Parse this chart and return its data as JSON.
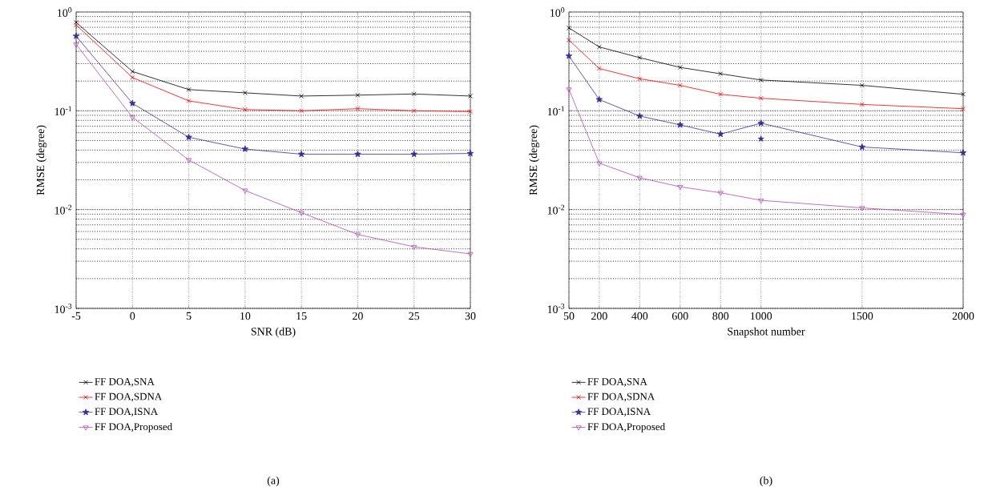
{
  "chart_data": [
    {
      "type": "line",
      "xlabel": "SNR (dB)",
      "ylabel": "RMSE (degree)",
      "log": "y",
      "grid": true,
      "legend": "bottom",
      "line_style": "solid",
      "x": [
        -5,
        0,
        5,
        10,
        15,
        20,
        25,
        30
      ],
      "xlim": [
        -5,
        30
      ],
      "xticks": [
        -5,
        0,
        5,
        10,
        15,
        20,
        25,
        30
      ],
      "ylim": [
        0.001,
        1
      ],
      "yticks": [
        {
          "value": 0.001,
          "label": "10$^{-3}$"
        },
        {
          "value": 0.01,
          "label": "10$^{-2}$"
        },
        {
          "value": 0.1,
          "label": "10$^{-1}$"
        },
        {
          "value": 1,
          "label": "10$^{0}$"
        }
      ],
      "series": [
        {
          "name": "FF DOA,SNA",
          "color": "#000000",
          "marker": "cross",
          "values": [
            0.785,
            0.25,
            0.164,
            0.152,
            0.141,
            0.144,
            0.148,
            0.141
          ]
        },
        {
          "name": "FF DOA,SDNA",
          "color": "#ff0000",
          "marker": "cross",
          "values": [
            0.74,
            0.217,
            0.126,
            0.103,
            0.1,
            0.105,
            0.1,
            0.098
          ]
        },
        {
          "name": "FF DOA,ISNA",
          "color": "#3a2e96",
          "marker": "star",
          "values": [
            0.57,
            0.119,
            0.054,
            0.041,
            0.0364,
            0.0364,
            0.0364,
            0.037
          ]
        },
        {
          "name": "FF DOA,Proposed",
          "color": "#b04cb0",
          "marker": "triangle",
          "values": [
            0.47,
            0.086,
            0.0318,
            0.0156,
            0.0093,
            0.0056,
            0.0042,
            0.00356
          ]
        }
      ],
      "annotations": [
        "(a)"
      ]
    },
    {
      "type": "line",
      "xlabel": "Snapshot number",
      "ylabel": "RMSE (degree)",
      "log": "y",
      "grid": true,
      "legend": "bottom",
      "line_style": "solid",
      "x": [
        50,
        200,
        400,
        600,
        800,
        1000,
        1500,
        2000
      ],
      "xlim": [
        50,
        2000
      ],
      "xticks": [
        50,
        200,
        400,
        600,
        800,
        1000,
        1500,
        2000
      ],
      "ylim": [
        0.001,
        1
      ],
      "yticks": [
        {
          "value": 0.001,
          "label": "10$^{-3}$"
        },
        {
          "value": 0.01,
          "label": "10$^{-2}$"
        },
        {
          "value": 0.1,
          "label": "10$^{-1}$"
        },
        {
          "value": 1,
          "label": "10$^{0}$"
        }
      ],
      "series": [
        {
          "name": "FF DOA,SNA",
          "color": "#000000",
          "marker": "cross",
          "values": [
            0.69,
            0.443,
            0.345,
            0.275,
            0.237,
            0.205,
            0.181,
            0.147
          ]
        },
        {
          "name": "FF DOA,SDNA",
          "color": "#ff0000",
          "marker": "cross",
          "values": [
            0.52,
            0.268,
            0.211,
            0.181,
            0.147,
            0.134,
            0.116,
            0.105
          ]
        },
        {
          "name": "FF DOA,ISNA",
          "color": "#3a2e96",
          "marker": "star",
          "values": [
            0.359,
            0.13,
            0.0885,
            0.072,
            0.058,
            0.075,
            0.043,
            0.0376
          ]
        },
        {
          "name": "FF DOA,Proposed",
          "color": "#b04cb0",
          "marker": "triangle",
          "values": [
            0.165,
            0.0295,
            0.021,
            0.017,
            0.0148,
            0.0124,
            0.0104,
            0.0089
          ]
        },
        {
          "type": "scatter",
          "color": "#3a2e96",
          "marker": "star",
          "x": [
            1000
          ],
          "values": [
            0.052
          ]
        }
      ],
      "annotations": [
        "(b)"
      ]
    }
  ]
}
